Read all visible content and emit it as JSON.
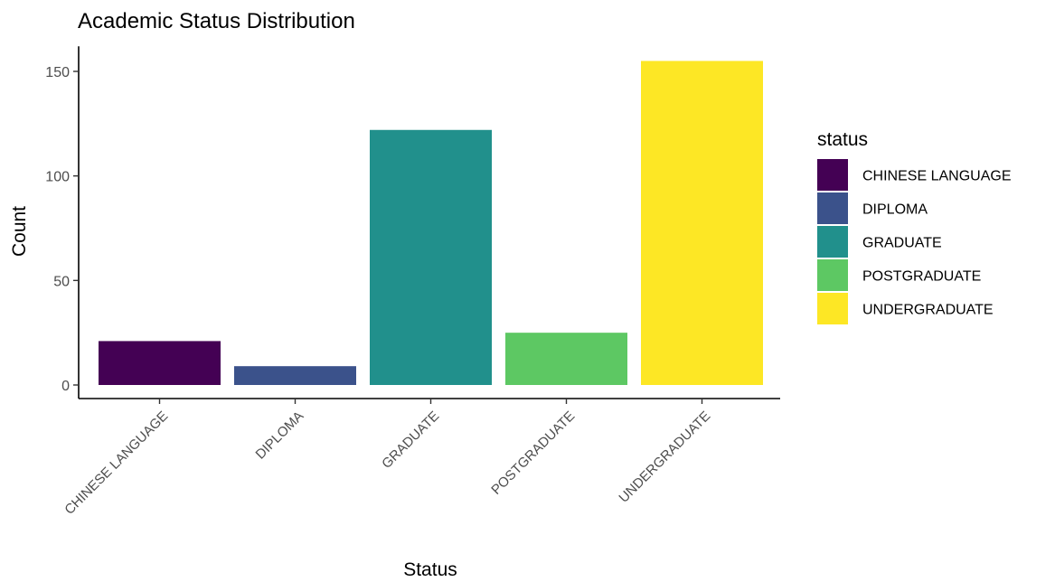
{
  "chart_data": {
    "type": "bar",
    "title": "Academic Status Distribution",
    "xlabel": "Status",
    "ylabel": "Count",
    "categories": [
      "CHINESE LANGUAGE",
      "DIPLOMA",
      "GRADUATE",
      "POSTGRADUATE",
      "UNDERGRADUATE"
    ],
    "values": [
      21,
      9,
      122,
      25,
      155
    ],
    "colors": [
      "#440154",
      "#3B528B",
      "#21908C",
      "#5DC863",
      "#FDE725"
    ],
    "yticks": [
      0,
      50,
      100,
      150
    ],
    "ytick_labels": [
      "0",
      "50",
      "100",
      "150"
    ],
    "ylim": [
      0,
      162
    ],
    "grid": false,
    "legend": {
      "title": "status",
      "placement": "right",
      "entries": [
        "CHINESE LANGUAGE",
        "DIPLOMA",
        "GRADUATE",
        "POSTGRADUATE",
        "UNDERGRADUATE"
      ]
    }
  }
}
